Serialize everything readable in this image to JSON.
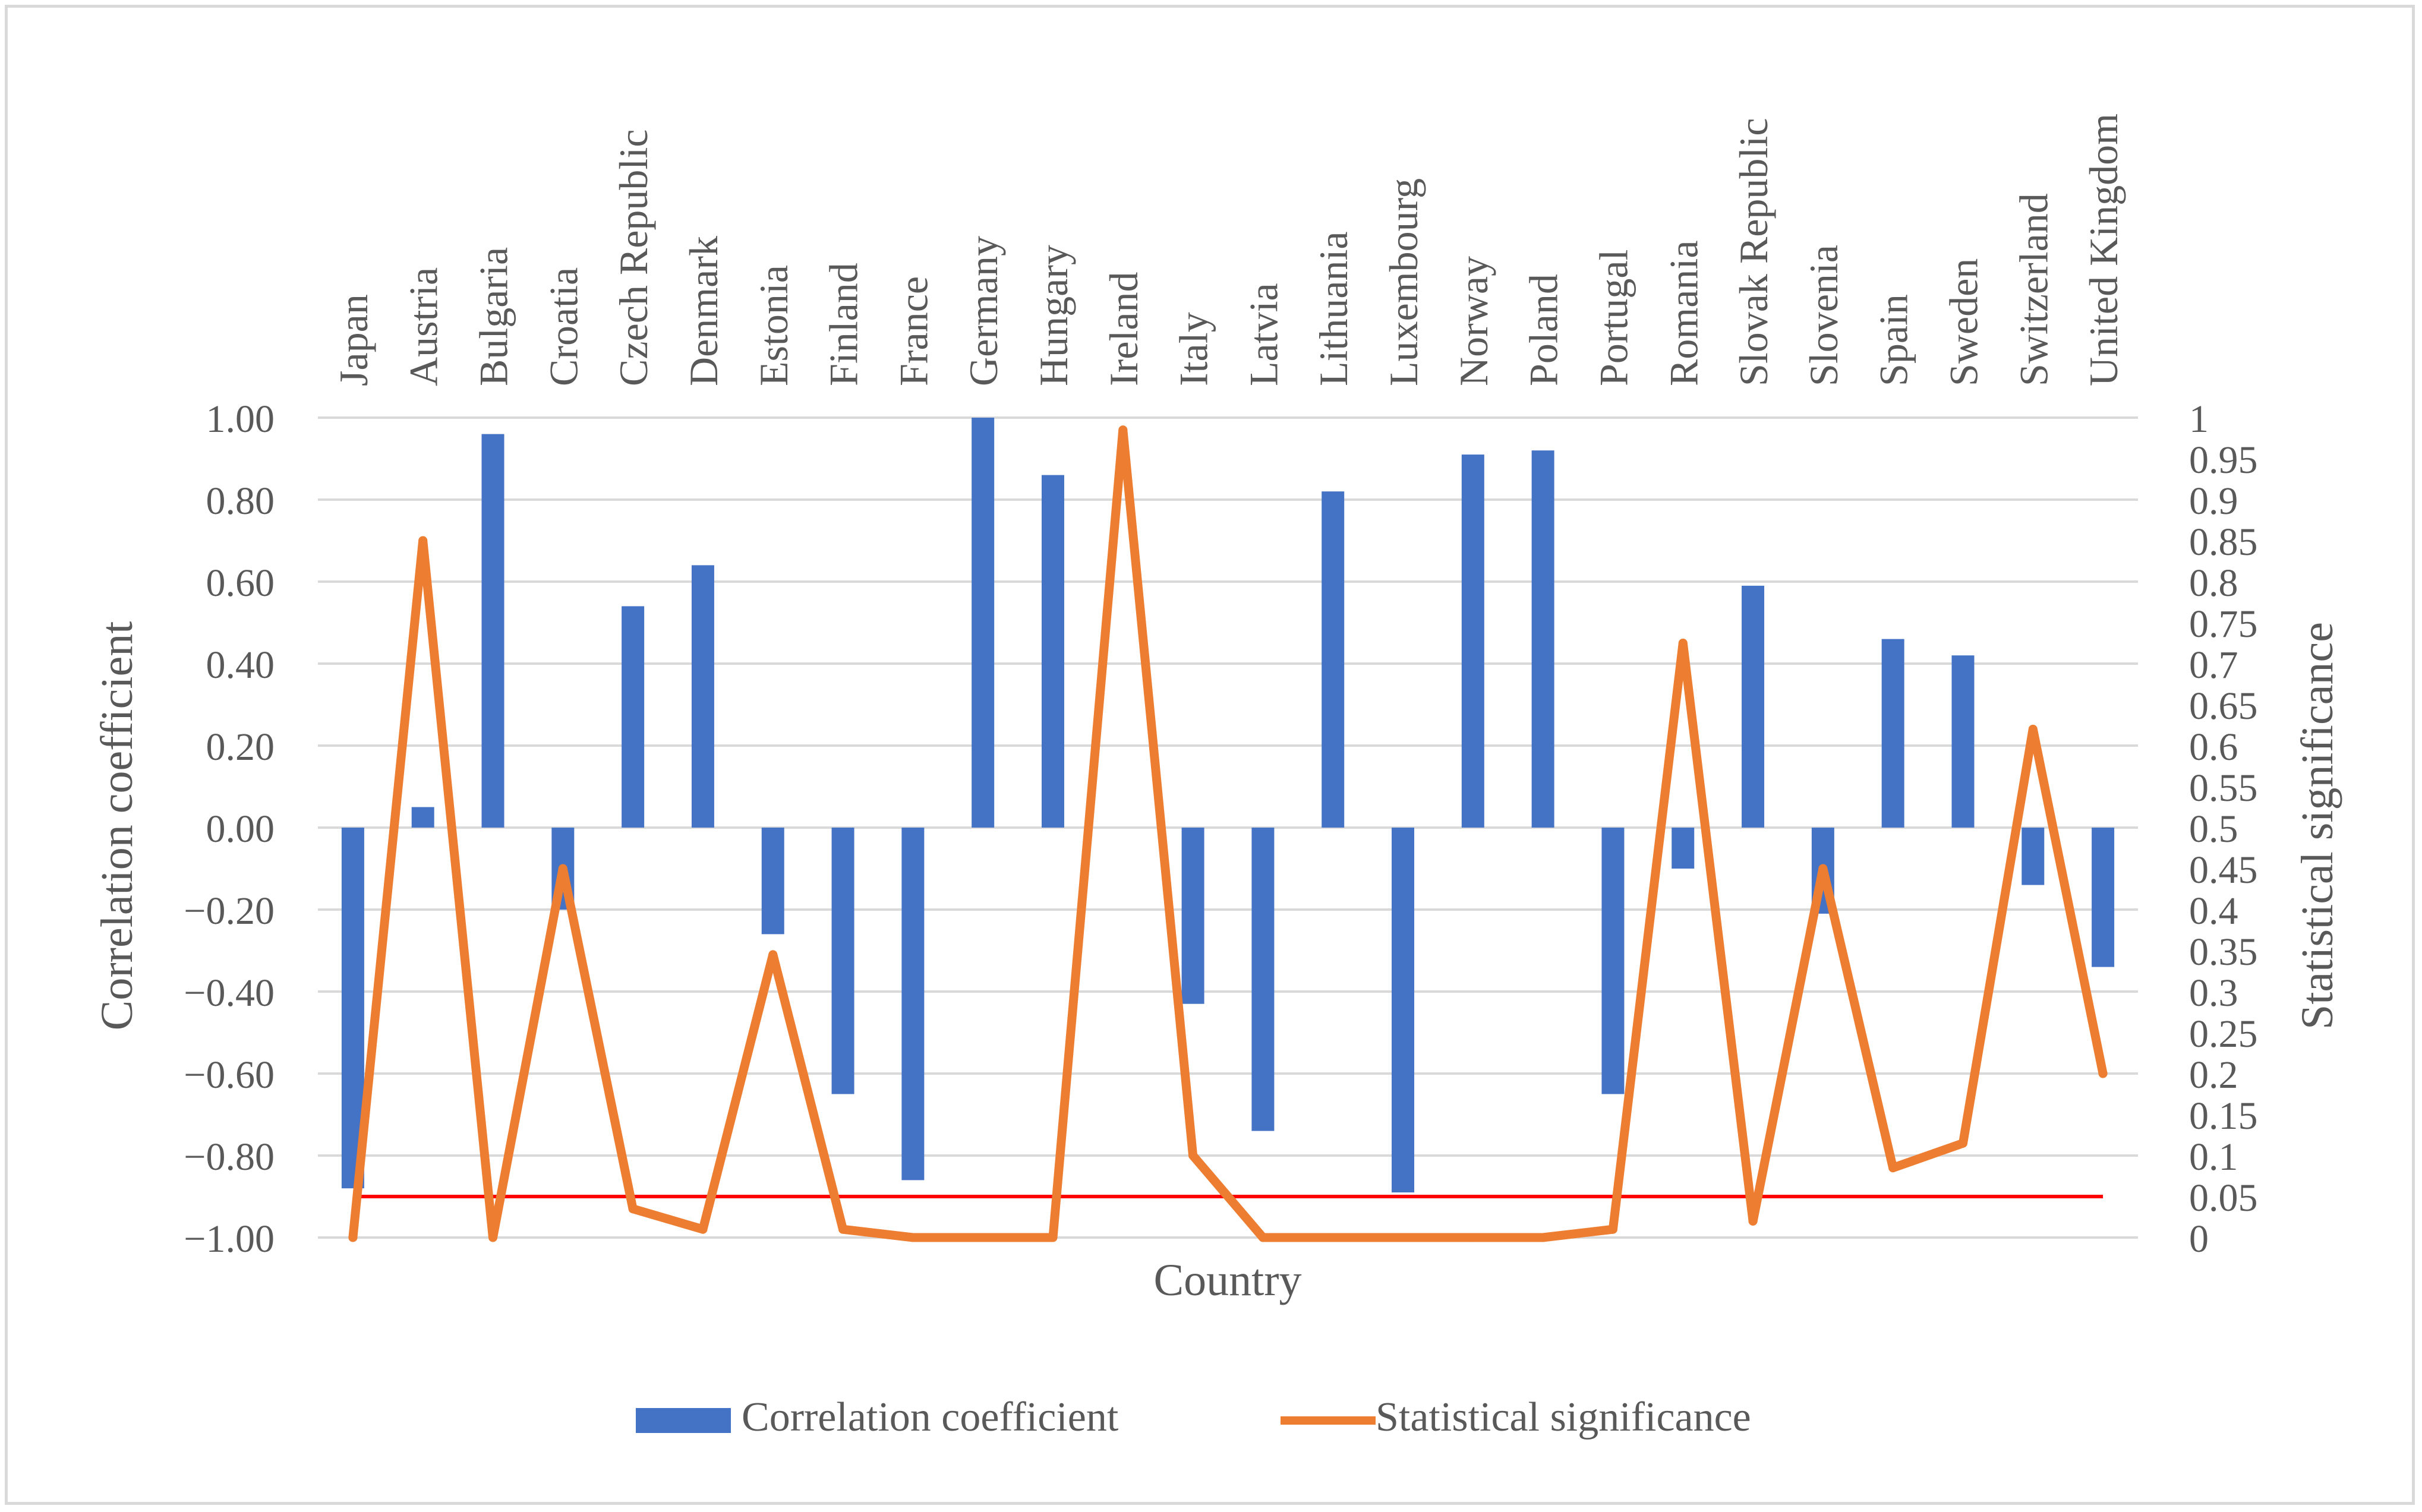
{
  "chart_data": {
    "type": "bar",
    "xlabel": "Country",
    "ylabel": "Correlation coefficient",
    "y2label": "Statistical significance",
    "ylim": [
      -1,
      1
    ],
    "y2lim": [
      0,
      1
    ],
    "yticks": [
      "1.00",
      "0.80",
      "0.60",
      "0.40",
      "0.20",
      "0.00",
      "−0.20",
      "−0.40",
      "−0.60",
      "−0.80",
      "−1.00"
    ],
    "y2ticks": [
      "1",
      "0.95",
      "0.9",
      "0.85",
      "0.8",
      "0.75",
      "0.7",
      "0.65",
      "0.6",
      "0.55",
      "0.5",
      "0.45",
      "0.4",
      "0.35",
      "0.3",
      "0.25",
      "0.2",
      "0.15",
      "0.1",
      "0.05",
      "0"
    ],
    "categories": [
      "Japan",
      "Austria",
      "Bulgaria",
      "Croatia",
      "Czech Republic",
      "Denmark",
      "Estonia",
      "Finland",
      "France",
      "Germany",
      "Hungary",
      "Ireland",
      "Italy",
      "Latvia",
      "Lithuania",
      "Luxembourg",
      "Norway",
      "Poland",
      "Portugal",
      "Romania",
      "Slovak Republic",
      "Slovenia",
      "Spain",
      "Sweden",
      "Switzerland",
      "United Kingdom"
    ],
    "series": [
      {
        "name": "Correlation coefficient",
        "kind": "bar",
        "axis": "left",
        "color": "#4472c4",
        "values": [
          -0.88,
          0.05,
          0.96,
          -0.2,
          0.54,
          0.64,
          -0.26,
          -0.65,
          -0.86,
          1.0,
          0.86,
          0.0,
          -0.43,
          -0.74,
          0.82,
          -0.89,
          0.91,
          0.92,
          -0.65,
          -0.1,
          0.59,
          -0.21,
          0.46,
          0.42,
          -0.14,
          -0.34
        ]
      },
      {
        "name": "Statistical significance",
        "kind": "line",
        "axis": "right",
        "color": "#ed7d31",
        "values": [
          0.0,
          0.85,
          0.0,
          0.45,
          0.035,
          0.01,
          0.345,
          0.01,
          0.0,
          0.0,
          0.0,
          0.985,
          0.1,
          0.0,
          0.0,
          0.0,
          0.0,
          0.0,
          0.01,
          0.725,
          0.02,
          0.45,
          0.085,
          0.115,
          0.62,
          0.2
        ]
      }
    ],
    "reference_line": {
      "axis": "right",
      "value": 0.05,
      "color": "#ff0000"
    },
    "legend": {
      "position": "bottom",
      "entries": [
        "Correlation coefficient",
        "Statistical significance"
      ]
    }
  }
}
